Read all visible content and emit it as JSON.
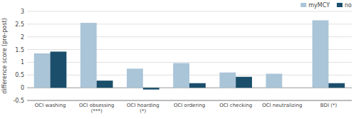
{
  "chart_data": {
    "type": "bar",
    "categories": [
      "OCI washing",
      "OCI obsessing\n(***)",
      "OCI hoarding\n(*)",
      "OCI ordering",
      "OCI checking",
      "OCI neutralizing",
      "BDI (*)"
    ],
    "series": [
      {
        "name": "myMCY",
        "color": "#aac4d8",
        "values": [
          1.35,
          2.55,
          0.75,
          0.97,
          0.6,
          0.55,
          2.65
        ]
      },
      {
        "name": "no",
        "color": "#1a4e6b",
        "values": [
          1.42,
          0.28,
          -0.07,
          0.18,
          0.43,
          0.0,
          0.18
        ]
      }
    ],
    "ylabel": "difference score (pre-post)",
    "ylim": [
      -0.5,
      3.0
    ],
    "yticks": [
      -0.5,
      0,
      0.5,
      1,
      1.5,
      2,
      2.5,
      3
    ],
    "grid": true,
    "legend": "upper right"
  }
}
